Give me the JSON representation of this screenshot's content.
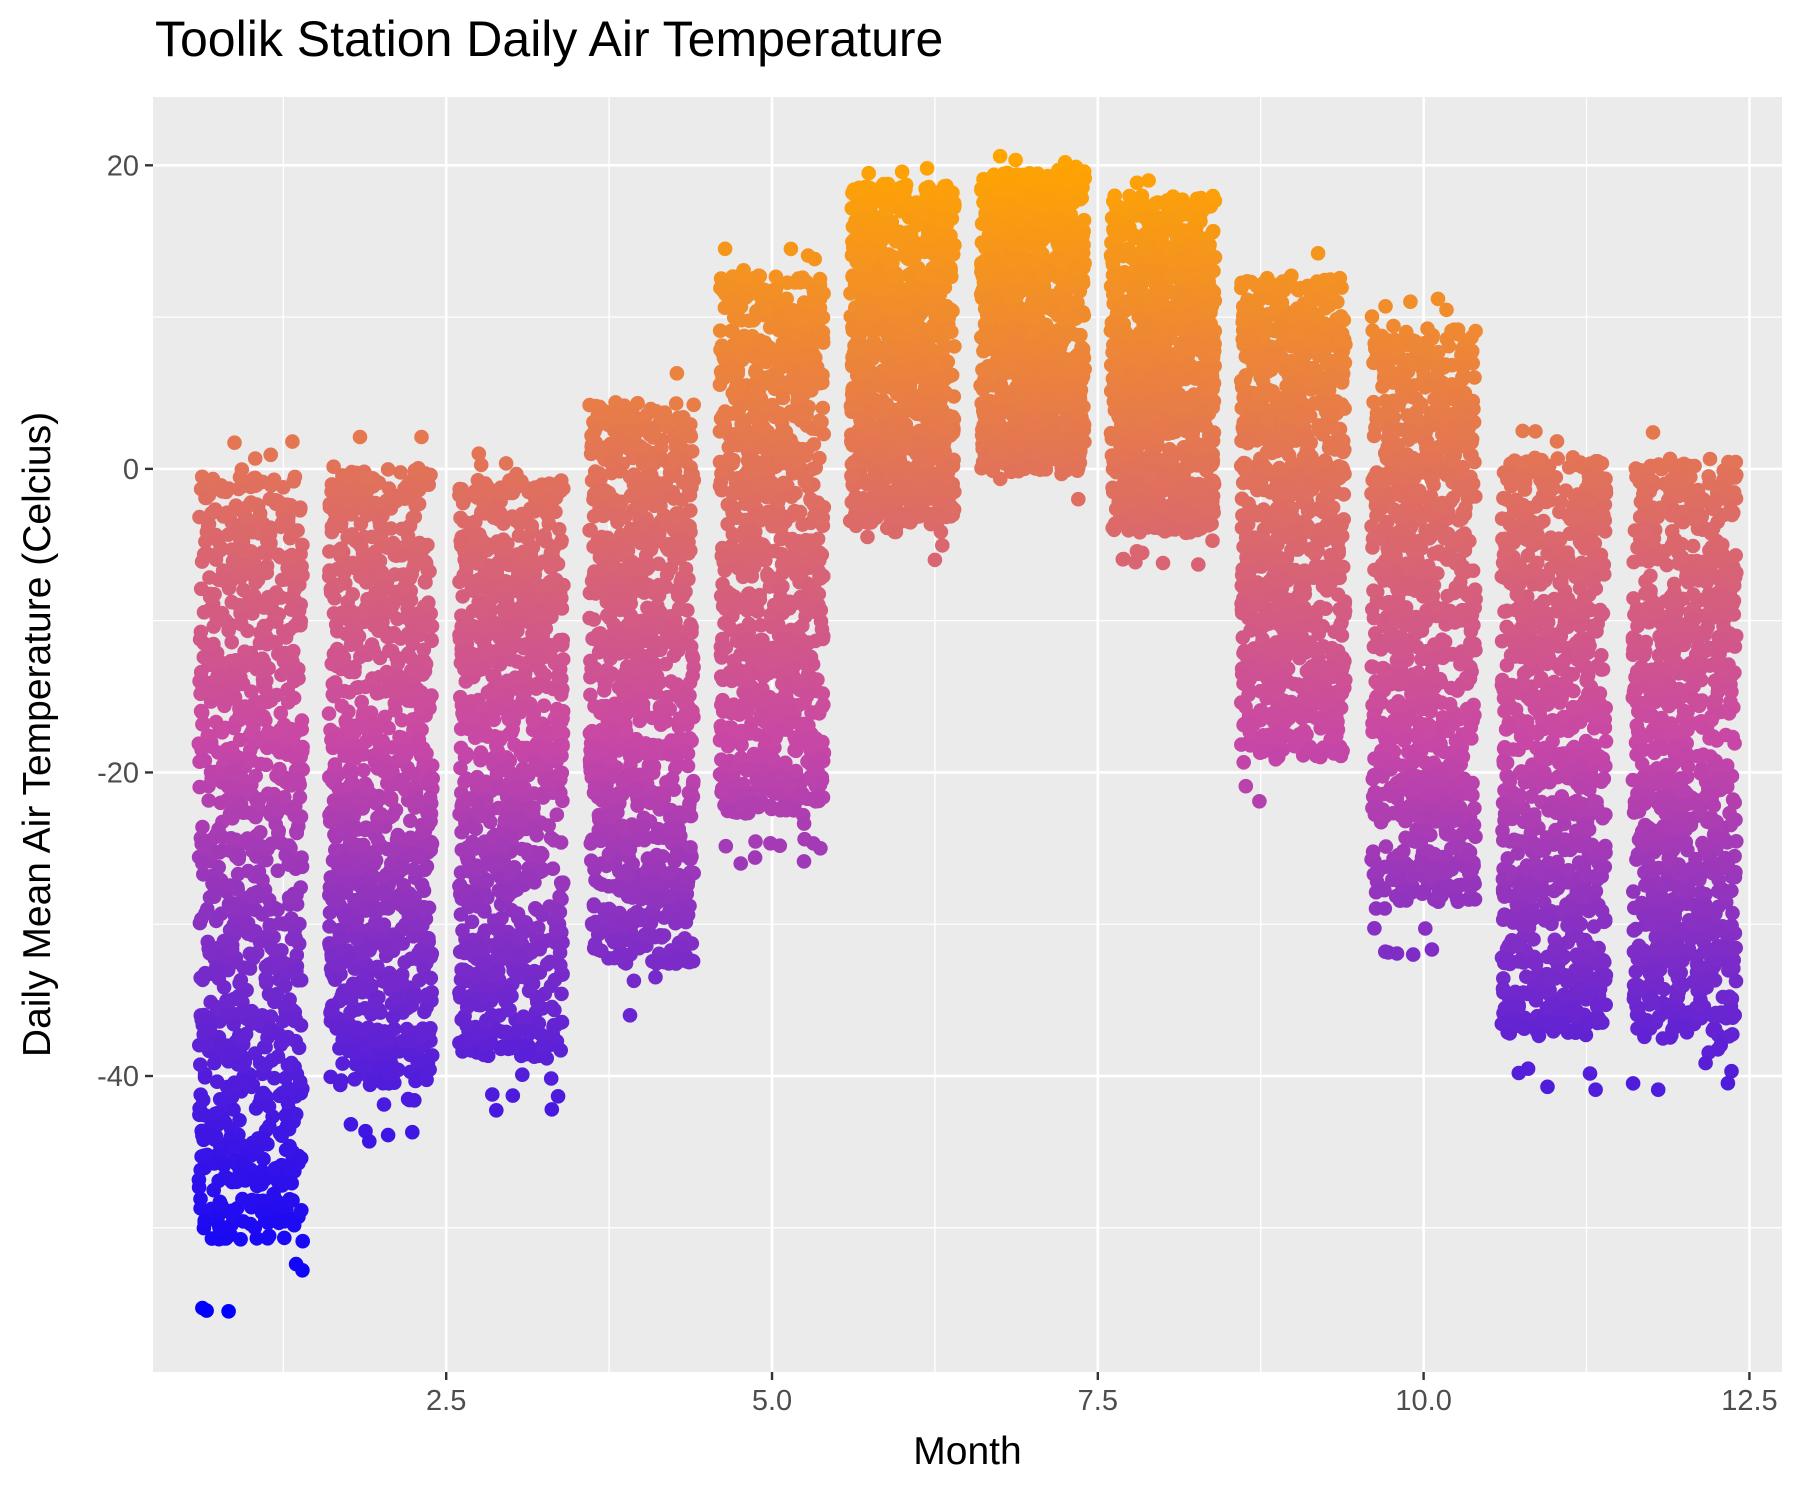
{
  "chart_data": {
    "type": "scatter",
    "title": "Toolik Station Daily Air Temperature",
    "xlabel": "Month",
    "ylabel": "Daily Mean Air Temperature (Celcius)",
    "xlim": [
      0.25,
      12.75
    ],
    "ylim": [
      -59.5,
      24.5
    ],
    "x_ticks": [
      2.5,
      5.0,
      7.5,
      10.0,
      12.5
    ],
    "x_tick_labels": [
      "2.5",
      "5.0",
      "7.5",
      "10.0",
      "12.5"
    ],
    "y_ticks": [
      -40,
      -20,
      0,
      20
    ],
    "y_tick_labels": [
      "-40",
      "-20",
      "0",
      "20"
    ],
    "x_minor_gridlines": [
      1.25,
      3.75,
      6.25,
      8.75,
      11.25
    ],
    "y_minor_gridlines": [
      -50,
      -30,
      -10,
      10
    ],
    "grid": true,
    "background_color": "#ebebeb",
    "gridline_color": "#ffffff",
    "color_gradient": {
      "low": "#0000ff",
      "mid": "#c847a6",
      "high": "#ffa500"
    },
    "point_color_mapping": "Daily Mean Air Temperature (Celcius)",
    "jitter_width": 0.4,
    "monthly_ranges": [
      {
        "month": 1,
        "min": -55.5,
        "max": 1.8
      },
      {
        "month": 2,
        "min": -44.5,
        "max": 2.1
      },
      {
        "month": 3,
        "min": -42.3,
        "max": 1.0
      },
      {
        "month": 4,
        "min": -36.0,
        "max": 6.3
      },
      {
        "month": 5,
        "min": -26.0,
        "max": 14.5
      },
      {
        "month": 6,
        "min": -6.0,
        "max": 19.8
      },
      {
        "month": 7,
        "min": -2.0,
        "max": 20.6
      },
      {
        "month": 8,
        "min": -6.3,
        "max": 19.0
      },
      {
        "month": 9,
        "min": -21.9,
        "max": 14.2
      },
      {
        "month": 10,
        "min": -32.0,
        "max": 11.2
      },
      {
        "month": 11,
        "min": -40.9,
        "max": 2.5
      },
      {
        "month": 12,
        "min": -41.0,
        "max": 2.4
      }
    ],
    "points": [
      {
        "x": 0.83,
        "y": -55.5
      },
      {
        "x": 0.76,
        "y": -50.0
      },
      {
        "x": 0.81,
        "y": -50.0
      },
      {
        "x": 1.37,
        "y": -45.5
      },
      {
        "x": 0.95,
        "y": -46.4
      },
      {
        "x": 1.91,
        "y": -44.3
      },
      {
        "x": 2.24,
        "y": -43.7
      },
      {
        "x": 3.31,
        "y": -42.2
      },
      {
        "x": 3.91,
        "y": -36.0
      },
      {
        "x": 4.76,
        "y": -26.0
      },
      {
        "x": 5.25,
        "y": -24.4
      },
      {
        "x": 6.25,
        "y": -6.0
      },
      {
        "x": 7.35,
        "y": -2.0
      },
      {
        "x": 8.0,
        "y": -6.2
      },
      {
        "x": 8.74,
        "y": -21.9
      },
      {
        "x": 9.92,
        "y": -32.0
      },
      {
        "x": 10.73,
        "y": -39.8
      },
      {
        "x": 11.32,
        "y": -40.9
      },
      {
        "x": 11.8,
        "y": -40.9
      },
      {
        "x": 6.75,
        "y": 20.6
      },
      {
        "x": 7.25,
        "y": 20.2
      },
      {
        "x": 6.19,
        "y": 19.8
      },
      {
        "x": 7.89,
        "y": 19.0
      },
      {
        "x": 4.64,
        "y": 14.5
      },
      {
        "x": 9.19,
        "y": 14.2
      },
      {
        "x": 10.11,
        "y": 11.2
      },
      {
        "x": 4.27,
        "y": 6.3
      },
      {
        "x": 3.6,
        "y": 4.2
      },
      {
        "x": 10.76,
        "y": 2.5
      },
      {
        "x": 11.76,
        "y": 2.4
      },
      {
        "x": 2.31,
        "y": 2.1
      },
      {
        "x": 1.32,
        "y": 1.8
      },
      {
        "x": 2.75,
        "y": 1.0
      },
      {
        "x": 10.29,
        "y": 7.5
      }
    ]
  }
}
